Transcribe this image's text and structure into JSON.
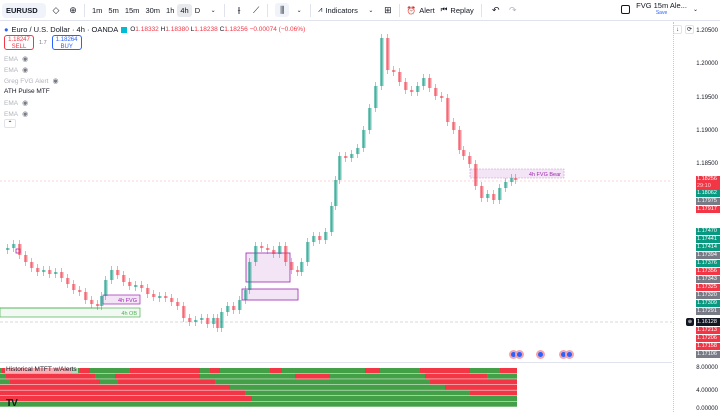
{
  "toolbar": {
    "symbol": "EURUSD",
    "timeframes": [
      "1m",
      "5m",
      "15m",
      "30m",
      "1h",
      "4h",
      "D"
    ],
    "active_timeframe": "4h",
    "indicators_label": "Indicators",
    "alert_label": "Alert",
    "replay_label": "Replay",
    "layout_name": "FVG 15m Ale...",
    "layout_save": "Save"
  },
  "legend": {
    "title": "Euro / U.S. Dollar · 4h · OANDA",
    "open_label": "O",
    "open": "1.18332",
    "high_label": "H",
    "high": "1.18380",
    "low_label": "L",
    "low": "1.18238",
    "close_label": "C",
    "close": "1.18256",
    "change": "−0.00074 (−0.06%)"
  },
  "trade": {
    "sell_price": "1.18247",
    "sell_label": "SELL",
    "spread": "1.7",
    "buy_price": "1.18264",
    "buy_label": "BUY"
  },
  "indicators": [
    {
      "name": "EMA",
      "muted": true
    },
    {
      "name": "EMA",
      "muted": true
    },
    {
      "name": "Greg FVG Alert",
      "muted": true
    },
    {
      "name": "ATH Pulse MTF",
      "muted": false
    },
    {
      "name": "EMA",
      "muted": true
    },
    {
      "name": "EMA",
      "muted": true
    }
  ],
  "price_axis": {
    "ticks": [
      "1.20500",
      "1.20000",
      "1.19500",
      "1.19000",
      "1.18500"
    ],
    "current_price": "1.18256",
    "countdown": "29:10",
    "labels": [
      {
        "v": "1.18062",
        "c": "#089981"
      },
      {
        "v": "1.17975",
        "c": "#787b86"
      },
      {
        "v": "1.17917",
        "c": "#f23645"
      },
      {
        "v": "1.17470",
        "c": "#089981"
      },
      {
        "v": "1.17441",
        "c": "#089981"
      },
      {
        "v": "1.17414",
        "c": "#089981"
      },
      {
        "v": "1.17394",
        "c": "#787b86"
      },
      {
        "v": "1.17376",
        "c": "#089981"
      },
      {
        "v": "1.17356",
        "c": "#f23645"
      },
      {
        "v": "1.17343",
        "c": "#787b86"
      },
      {
        "v": "1.17325",
        "c": "#f23645"
      },
      {
        "v": "1.17320",
        "c": "#787b86"
      },
      {
        "v": "1.17309",
        "c": "#089981"
      },
      {
        "v": "1.17291",
        "c": "#787b86"
      }
    ],
    "crosshair_price": "1.16128",
    "labels_low": [
      {
        "v": "1.17213",
        "c": "#f23645"
      },
      {
        "v": "1.17206",
        "c": "#f23645"
      },
      {
        "v": "1.17158",
        "c": "#f23645"
      },
      {
        "v": "1.17106",
        "c": "#787b86"
      }
    ]
  },
  "annotations": {
    "fvg_bear": "4h FVG Bear",
    "fvg": "4h FVG",
    "ob": "4h OB"
  },
  "lower_pane": {
    "title": "Historical MTFT w/Alerts",
    "ticks": [
      "8.00000",
      "4.00000",
      "0.00000"
    ]
  },
  "colors": {
    "up": "#089981",
    "down": "#f23645",
    "mtf_up": "#43a047",
    "mtf_down": "#f23645",
    "fvg": "#9c27b0",
    "ob": "#4caf50"
  }
}
